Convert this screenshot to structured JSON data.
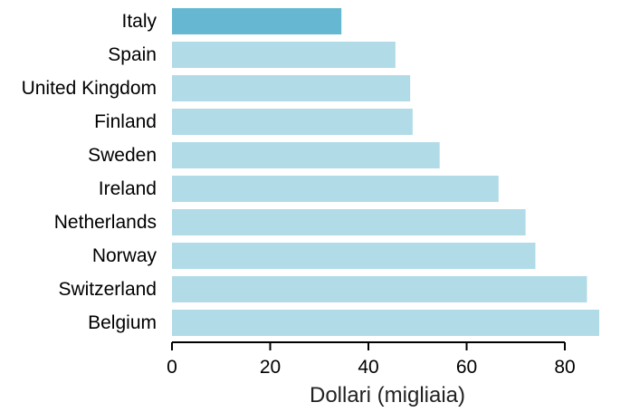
{
  "chart_data": {
    "type": "bar",
    "orientation": "horizontal",
    "categories": [
      "Italy",
      "Spain",
      "United Kingdom",
      "Finland",
      "Sweden",
      "Ireland",
      "Netherlands",
      "Norway",
      "Switzerland",
      "Belgium"
    ],
    "values": [
      34.5,
      45.5,
      48.5,
      49.0,
      54.5,
      66.5,
      72.0,
      74.0,
      84.5,
      87.0
    ],
    "highlight_category": "Italy",
    "title": "",
    "xlabel": "Dollari (migliaia)",
    "ylabel": "",
    "xlim": [
      0,
      87.0
    ],
    "xticks": [
      0,
      20,
      40,
      60,
      80
    ],
    "grid": false,
    "colors": {
      "highlight": "#66b8d2",
      "bar": "#b1dbe7",
      "axis": "#000000"
    }
  }
}
